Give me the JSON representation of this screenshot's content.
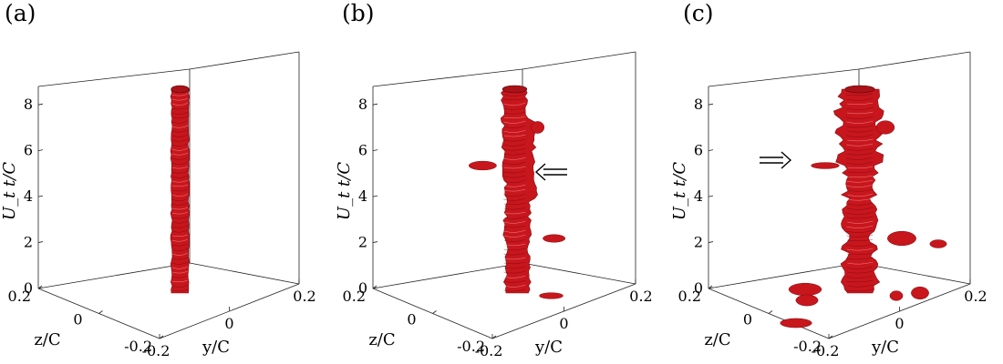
{
  "chart_data": [
    {
      "type": "isosurface-3d",
      "panel_label": "(a)",
      "ylabel": "U_t t/C",
      "x1label": "z/C",
      "x2label": "y/C",
      "zticks": [
        "0",
        "2",
        "4",
        "6",
        "8"
      ],
      "zticks_values": [
        0,
        2,
        4,
        6,
        8
      ],
      "y_ticks": [
        "-0.2",
        "0",
        "0.2"
      ],
      "z_ticks": [
        "0.2",
        "0",
        "-0.2"
      ],
      "zlim": [
        0,
        8.8
      ],
      "surface_color": "#c8161d",
      "annotation": "",
      "features": {
        "width_scale": 1.0,
        "roughness": 0.1,
        "blobs": 0
      }
    },
    {
      "type": "isosurface-3d",
      "panel_label": "(b)",
      "ylabel": "U_t t/C",
      "x1label": "z/C",
      "x2label": "y/C",
      "zticks": [
        "0",
        "2",
        "4",
        "6",
        "8"
      ],
      "zticks_values": [
        0,
        2,
        4,
        6,
        8
      ],
      "y_ticks": [
        "-0.2",
        "0",
        "0.2"
      ],
      "z_ticks": [
        "0.2",
        "0",
        "-0.2"
      ],
      "zlim": [
        0,
        8.8
      ],
      "surface_color": "#c8161d",
      "annotation": "arrow at U_t t/C ≈ 4.9",
      "features": {
        "width_scale": 1.25,
        "roughness": 0.25,
        "blobs": 4
      }
    },
    {
      "type": "isosurface-3d",
      "panel_label": "(c)",
      "ylabel": "U_t t/C",
      "x1label": "z/C",
      "x2label": "y/C",
      "zticks": [
        "0",
        "2",
        "4",
        "6",
        "8"
      ],
      "zticks_values": [
        0,
        2,
        4,
        6,
        8
      ],
      "y_ticks": [
        "-0.2",
        "0",
        "0.2"
      ],
      "z_ticks": [
        "0.2",
        "0",
        "-0.2"
      ],
      "zlim": [
        0,
        8.8
      ],
      "surface_color": "#c8161d",
      "annotation": "arrow at U_t t/C ≈ 5.4",
      "features": {
        "width_scale": 1.6,
        "roughness": 0.45,
        "blobs": 9
      }
    }
  ]
}
